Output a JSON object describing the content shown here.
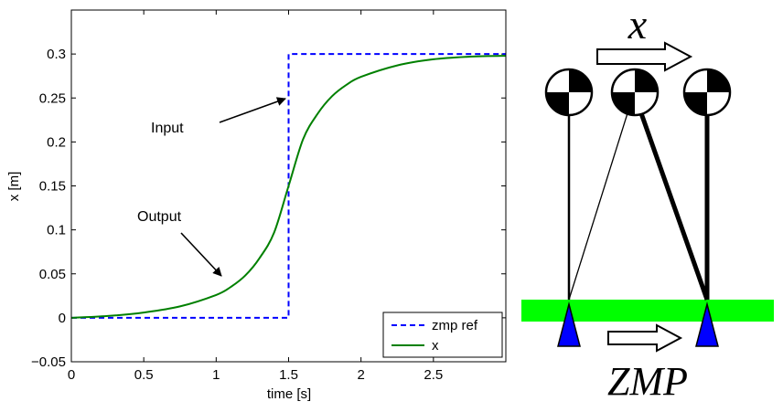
{
  "chart_data": {
    "type": "line",
    "xlabel": "time [s]",
    "ylabel": "x [m]",
    "xlim": [
      0,
      3
    ],
    "ylim": [
      -0.05,
      0.35
    ],
    "xticks": [
      0,
      0.5,
      1,
      1.5,
      2,
      2.5
    ],
    "xtick_labels": [
      "0",
      "0.5",
      "1",
      "1.5",
      "2",
      "2.5"
    ],
    "yticks": [
      -0.05,
      0,
      0.05,
      0.1,
      0.15,
      0.2,
      0.25,
      0.3
    ],
    "ytick_labels": [
      "−0.05",
      "0",
      "0.05",
      "0.1",
      "0.15",
      "0.2",
      "0.25",
      "0.3"
    ],
    "series": [
      {
        "name": "zmp ref",
        "style": "dashed",
        "color": "#0000ff",
        "x": [
          0,
          1.5,
          1.5,
          3.0
        ],
        "y": [
          0,
          0,
          0.3,
          0.3
        ]
      },
      {
        "name": "x",
        "style": "solid",
        "color": "#008000",
        "x": [
          0,
          0.25,
          0.5,
          0.75,
          1.0,
          1.1,
          1.2,
          1.3,
          1.4,
          1.5,
          1.6,
          1.7,
          1.8,
          1.9,
          2.0,
          2.25,
          2.5,
          2.75,
          3.0
        ],
        "y": [
          0,
          0.002,
          0.006,
          0.013,
          0.026,
          0.035,
          0.048,
          0.068,
          0.097,
          0.15,
          0.203,
          0.232,
          0.252,
          0.265,
          0.274,
          0.287,
          0.294,
          0.297,
          0.298
        ]
      }
    ],
    "annotations": [
      {
        "text": "Input",
        "target_x": 1.48,
        "target_y": 0.258
      },
      {
        "text": "Output",
        "target_x": 1.05,
        "target_y": 0.024
      }
    ],
    "legend_position": "bottom-right"
  },
  "diagram": {
    "top_label": "x",
    "bottom_label": "ZMP",
    "ground_color": "#00ff00",
    "foot_color": "#0000ff"
  }
}
